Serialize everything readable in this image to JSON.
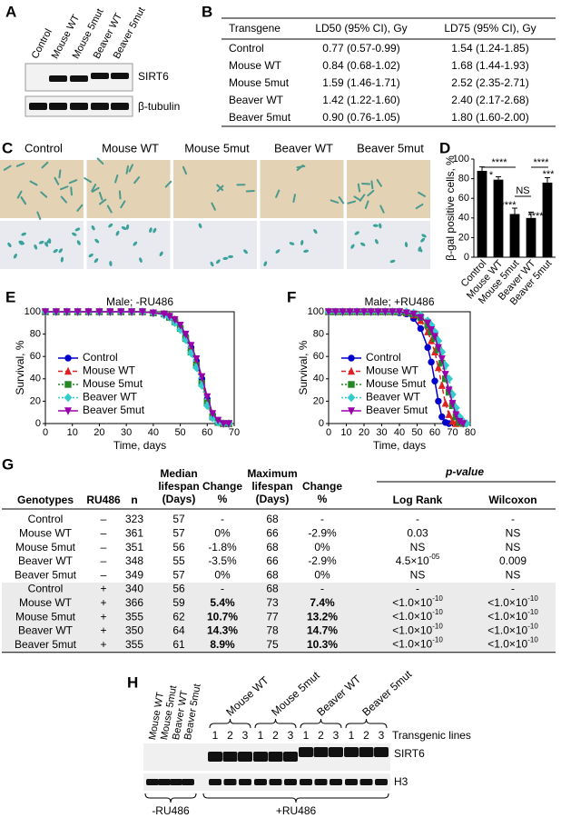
{
  "panel_labels": [
    "A",
    "B",
    "C",
    "D",
    "E",
    "F",
    "G",
    "H"
  ],
  "panel_a": {
    "lanes": [
      "Control",
      "Mouse WT",
      "Mouse 5mut",
      "Beaver WT",
      "Beaver 5mut"
    ],
    "bands": [
      "SIRT6",
      "β-tubulin"
    ]
  },
  "panel_b": {
    "header": [
      "Transgene",
      "LD50 (95% CI), Gy",
      "LD75 (95% CI), Gy"
    ],
    "rows": [
      [
        "Control",
        "0.77 (0.57-0.99)",
        "1.54 (1.24-1.85)"
      ],
      [
        "Mouse WT",
        "0.84 (0.68-1.02)",
        "1.68 (1.44-1.93)"
      ],
      [
        "Mouse 5mut",
        "1.59 (1.46-1.71)",
        "2.52 (2.35-2.71)"
      ],
      [
        "Beaver WT",
        "1.42 (1.22-1.60)",
        "2.40 (2.17-2.68)"
      ],
      [
        "Beaver 5mut",
        "0.90 (0.76-1.05)",
        "1.80 (1.60-2.00)"
      ]
    ]
  },
  "panel_c": {
    "columns": [
      "Control",
      "Mouse WT",
      "Mouse 5mut",
      "Beaver WT",
      "Beaver 5mut"
    ]
  },
  "chart_data": [
    {
      "type": "bar",
      "y_label": "β-gal positive cells, %",
      "categories": [
        "Control",
        "Mouse WT",
        "Mouse 5mut",
        "Beaver WT",
        "Beaver 5mut"
      ],
      "values": [
        88,
        79,
        44,
        40,
        76
      ],
      "errors": [
        4,
        3,
        6,
        6,
        5
      ],
      "color": "#000000",
      "ylim": [
        0,
        100
      ],
      "yticks": [
        0,
        20,
        40,
        60,
        80,
        100
      ],
      "significance": [
        "****",
        "*",
        "****",
        "NS",
        "****",
        "****",
        "***"
      ]
    },
    {
      "type": "line",
      "title": "Male; -RU486",
      "x_label": "Time, days",
      "y_label": "Survival, %",
      "x": [
        0,
        4,
        8,
        12,
        16,
        20,
        24,
        28,
        32,
        36,
        40,
        44,
        46,
        48,
        50,
        52,
        54,
        56,
        58,
        60,
        62,
        64,
        66,
        68
      ],
      "series": [
        {
          "name": "Control",
          "color": "#0000cc",
          "marker": "circle",
          "dash": "solid",
          "values": [
            100,
            100,
            100,
            100,
            100,
            100,
            100,
            100,
            100,
            100,
            99,
            98,
            96,
            92,
            86,
            78,
            68,
            56,
            40,
            22,
            8,
            2,
            0,
            0
          ]
        },
        {
          "name": "Mouse WT",
          "color": "#dd2222",
          "marker": "triangle",
          "dash": "dashed",
          "values": [
            100,
            100,
            100,
            100,
            100,
            100,
            100,
            100,
            100,
            100,
            99,
            98,
            96,
            93,
            87,
            79,
            68,
            55,
            38,
            20,
            7,
            1,
            0,
            0
          ]
        },
        {
          "name": "Mouse 5mut",
          "color": "#228822",
          "marker": "square",
          "dash": "dotted",
          "values": [
            100,
            100,
            100,
            100,
            100,
            100,
            100,
            100,
            100,
            100,
            99,
            98,
            95,
            91,
            85,
            76,
            64,
            52,
            36,
            19,
            6,
            1,
            0,
            0
          ]
        },
        {
          "name": "Beaver WT",
          "color": "#33cccc",
          "marker": "diamond",
          "dash": "dotted",
          "values": [
            100,
            100,
            100,
            100,
            100,
            100,
            100,
            100,
            100,
            100,
            99,
            97,
            95,
            90,
            84,
            75,
            63,
            50,
            34,
            16,
            5,
            1,
            0,
            0
          ]
        },
        {
          "name": "Beaver 5mut",
          "color": "#9900aa",
          "marker": "triangle-down",
          "dash": "solid",
          "values": [
            100,
            100,
            100,
            100,
            100,
            100,
            100,
            100,
            100,
            100,
            99,
            98,
            96,
            93,
            88,
            80,
            70,
            58,
            42,
            24,
            9,
            3,
            0,
            0
          ]
        }
      ],
      "xlim": [
        0,
        70
      ],
      "xticks": [
        0,
        10,
        20,
        30,
        40,
        50,
        60,
        70
      ],
      "ylim": [
        0,
        100
      ],
      "yticks": [
        0,
        20,
        40,
        60,
        80,
        100
      ],
      "legend": "lower left"
    },
    {
      "type": "line",
      "title": "Male; +RU486",
      "x_label": "Time, days",
      "y_label": "Survival, %",
      "x": [
        0,
        4,
        8,
        12,
        16,
        20,
        24,
        28,
        32,
        36,
        40,
        44,
        48,
        52,
        56,
        58,
        60,
        62,
        64,
        66,
        68,
        70,
        72,
        74,
        76,
        78
      ],
      "series": [
        {
          "name": "Control",
          "color": "#0000cc",
          "marker": "circle",
          "dash": "solid",
          "values": [
            100,
            100,
            100,
            100,
            100,
            100,
            100,
            100,
            100,
            100,
            99,
            98,
            94,
            85,
            68,
            55,
            38,
            20,
            6,
            1,
            0,
            null,
            null,
            null,
            null,
            null
          ]
        },
        {
          "name": "Mouse WT",
          "color": "#dd2222",
          "marker": "triangle",
          "dash": "dashed",
          "values": [
            100,
            100,
            100,
            100,
            100,
            100,
            100,
            100,
            100,
            100,
            100,
            99,
            97,
            92,
            82,
            74,
            64,
            50,
            34,
            18,
            8,
            2,
            0,
            null,
            null,
            null
          ]
        },
        {
          "name": "Mouse 5mut",
          "color": "#228822",
          "marker": "square",
          "dash": "dotted",
          "values": [
            100,
            100,
            100,
            100,
            100,
            100,
            100,
            100,
            100,
            100,
            100,
            99,
            98,
            95,
            88,
            82,
            76,
            66,
            54,
            40,
            28,
            16,
            6,
            1,
            0,
            null
          ]
        },
        {
          "name": "Beaver WT",
          "color": "#33cccc",
          "marker": "diamond",
          "dash": "dotted",
          "values": [
            100,
            100,
            100,
            100,
            100,
            100,
            100,
            100,
            100,
            100,
            100,
            100,
            99,
            97,
            92,
            88,
            82,
            74,
            64,
            52,
            40,
            26,
            14,
            6,
            2,
            0
          ]
        },
        {
          "name": "Beaver 5mut",
          "color": "#9900aa",
          "marker": "triangle-down",
          "dash": "solid",
          "values": [
            100,
            100,
            100,
            100,
            100,
            100,
            100,
            100,
            100,
            100,
            100,
            99,
            98,
            95,
            90,
            84,
            78,
            68,
            58,
            44,
            30,
            18,
            8,
            2,
            0,
            null
          ]
        }
      ],
      "xlim": [
        0,
        80
      ],
      "xticks": [
        0,
        10,
        20,
        30,
        40,
        50,
        60,
        70,
        80
      ],
      "ylim": [
        0,
        100
      ],
      "yticks": [
        0,
        20,
        40,
        60,
        80,
        100
      ],
      "legend": "lower left"
    }
  ],
  "panel_g": {
    "header": {
      "genotypes": "Genotypes",
      "ru486": "RU486",
      "n": "n",
      "median": [
        "Median",
        "lifespan",
        "(Days)"
      ],
      "change": [
        "Change",
        "%"
      ],
      "maximum": [
        "Maximum",
        "lifespan",
        "(Days)"
      ],
      "change2": [
        "Change",
        "%"
      ],
      "p_value": "p-value",
      "log_rank": "Log Rank",
      "wilcoxon": "Wilcoxon"
    },
    "rows": [
      [
        "Control",
        "–",
        "323",
        "57",
        "-",
        "68",
        "-",
        "-",
        "-"
      ],
      [
        "Mouse WT",
        "–",
        "361",
        "57",
        "0%",
        "66",
        "-2.9%",
        "0.03",
        "NS"
      ],
      [
        "Mouse 5mut",
        "–",
        "351",
        "56",
        "-1.8%",
        "68",
        "0%",
        "NS",
        "NS"
      ],
      [
        "Beaver WT",
        "–",
        "348",
        "55",
        "-3.5%",
        "66",
        "-2.9%",
        {
          "text": "4.5×10",
          "sup": "-05"
        },
        "0.009"
      ],
      [
        "Beaver 5mut",
        "–",
        "349",
        "57",
        "0%",
        "68",
        "0%",
        "NS",
        "NS"
      ],
      [
        "Control",
        "+",
        "340",
        "56",
        "-",
        "68",
        "-",
        "-",
        "-"
      ],
      [
        "Mouse WT",
        "+",
        "366",
        "59",
        "5.4%",
        "73",
        "7.4%",
        {
          "text": "<1.0×10",
          "sup": "-10"
        },
        {
          "text": "<1.0×10",
          "sup": "-10"
        }
      ],
      [
        "Mouse 5mut",
        "+",
        "355",
        "62",
        "10.7%",
        "77",
        "13.2%",
        {
          "text": "<1.0×10",
          "sup": "-10"
        },
        {
          "text": "<1.0×10",
          "sup": "-10"
        }
      ],
      [
        "Beaver WT",
        "+",
        "350",
        "64",
        "14.3%",
        "78",
        "14.7%",
        {
          "text": "<1.0×10",
          "sup": "-10"
        },
        {
          "text": "<1.0×10",
          "sup": "-10"
        }
      ],
      [
        "Beaver 5mut",
        "+",
        "355",
        "61",
        "8.9%",
        "75",
        "10.3%",
        {
          "text": "<1.0×10",
          "sup": "-10"
        },
        {
          "text": "<1.0×10",
          "sup": "-10"
        }
      ]
    ]
  },
  "panel_h": {
    "control_lanes": [
      "Mouse WT",
      "Mouse 5mut",
      "Beaver WT",
      "Beaver 5mut"
    ],
    "groups": [
      {
        "name": "Mouse WT",
        "lanes": [
          "1",
          "2",
          "3"
        ]
      },
      {
        "name": "Mouse 5mut",
        "lanes": [
          "1",
          "2",
          "3"
        ]
      },
      {
        "name": "Beaver WT",
        "lanes": [
          "1",
          "2",
          "3"
        ]
      },
      {
        "name": "Beaver 5mut",
        "lanes": [
          "1",
          "2",
          "3"
        ]
      }
    ],
    "lines_label": "Transgenic lines",
    "bands": [
      "SIRT6",
      "H3"
    ],
    "treatments": [
      "-RU486",
      "+RU486"
    ]
  }
}
